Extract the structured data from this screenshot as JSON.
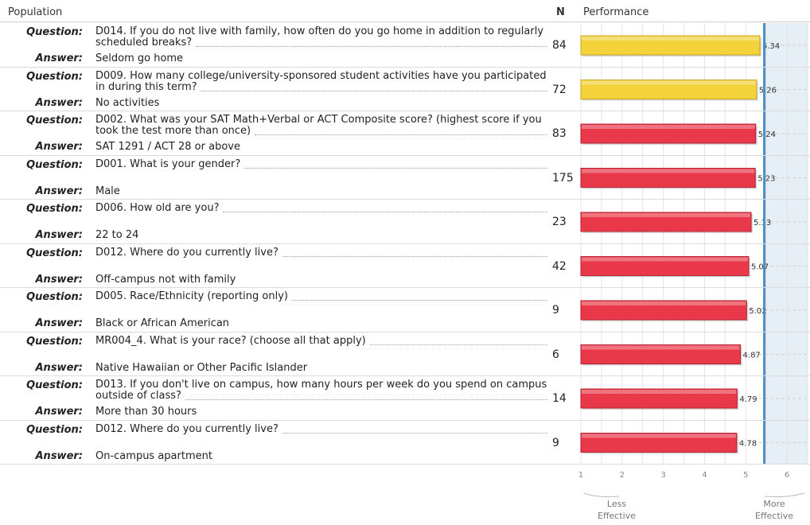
{
  "header": {
    "population": "Population",
    "n": "N",
    "performance": "Performance"
  },
  "labels": {
    "question": "Question:",
    "answer": "Answer:"
  },
  "footer": {
    "less_effective": "Less\nEffective",
    "more_effective": "More\nEffective"
  },
  "colors": {
    "yellow_bar": "#f3d23a",
    "red_bar": "#e8384a",
    "reference_line": "#4a8fc4",
    "right_zone": "#e6eef6"
  },
  "chart_data": {
    "type": "bar",
    "orientation": "horizontal",
    "xlim": [
      1,
      6.5
    ],
    "x_ticks": [
      1,
      2,
      3,
      4,
      5,
      6
    ],
    "reference_line": 5.45,
    "grid": true,
    "rows": [
      {
        "question": "D014. If you do not live with family, how often do you go home in addition to regularly scheduled breaks?",
        "answer": "Seldom go home",
        "n": "84",
        "value": 5.34,
        "label": "5.34",
        "color": "yellow"
      },
      {
        "question": "D009. How many college/university-sponsored student activities have you participated in during this term?",
        "answer": "No activities",
        "n": "72",
        "value": 5.26,
        "label": "5.26",
        "color": "yellow"
      },
      {
        "question": "D002. What was your SAT Math+Verbal or ACT Composite score? (highest score if you took the test more than once)",
        "answer": "SAT 1291 / ACT 28 or above",
        "n": "83",
        "value": 5.24,
        "label": "5.24",
        "color": "red"
      },
      {
        "question": "D001. What is your gender?",
        "answer": "Male",
        "n": "175",
        "value": 5.23,
        "label": "5.23",
        "color": "red"
      },
      {
        "question": "D006. How old are you?",
        "answer": "22 to 24",
        "n": "23",
        "value": 5.13,
        "label": "5.13",
        "color": "red"
      },
      {
        "question": "D012. Where do you currently live?",
        "answer": "Off-campus not with family",
        "n": "42",
        "value": 5.07,
        "label": "5.07",
        "color": "red"
      },
      {
        "question": "D005. Race/Ethnicity (reporting only)",
        "answer": "Black or African American",
        "n": "9",
        "value": 5.02,
        "label": "5.02",
        "color": "red"
      },
      {
        "question": "MR004_4. What is your race? (choose all that apply)",
        "answer": "Native Hawaiian or Other Pacific Islander",
        "n": "6",
        "value": 4.87,
        "label": "4.87",
        "color": "red"
      },
      {
        "question": "D013. If you don't live on campus, how many hours per week do you spend on campus outside of class?",
        "answer": "More than 30 hours",
        "n": "14",
        "value": 4.79,
        "label": "4.79",
        "color": "red"
      },
      {
        "question": "D012. Where do you currently live?",
        "answer": "On-campus apartment",
        "n": "9",
        "value": 4.78,
        "label": "4.78",
        "color": "red"
      }
    ]
  }
}
